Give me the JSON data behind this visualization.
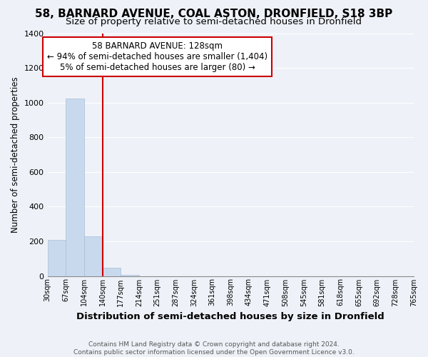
{
  "title": "58, BARNARD AVENUE, COAL ASTON, DRONFIELD, S18 3BP",
  "subtitle": "Size of property relative to semi-detached houses in Dronfield",
  "xlabel": "Distribution of semi-detached houses by size in Dronfield",
  "ylabel": "Number of semi-detached properties",
  "bin_labels": [
    "30sqm",
    "67sqm",
    "104sqm",
    "140sqm",
    "177sqm",
    "214sqm",
    "251sqm",
    "287sqm",
    "324sqm",
    "361sqm",
    "398sqm",
    "434sqm",
    "471sqm",
    "508sqm",
    "545sqm",
    "581sqm",
    "618sqm",
    "655sqm",
    "692sqm",
    "728sqm",
    "765sqm"
  ],
  "bar_values": [
    210,
    1025,
    230,
    47,
    5,
    0,
    0,
    0,
    0,
    0,
    0,
    0,
    0,
    0,
    0,
    0,
    0,
    0,
    0,
    0
  ],
  "bar_color": "#c8d9ee",
  "bar_edge_color": "#aabdd8",
  "property_line_color": "#cc0000",
  "annotation_line1": "58 BARNARD AVENUE: 128sqm",
  "annotation_line2": "← 94% of semi-detached houses are smaller (1,404)",
  "annotation_line3": "5% of semi-detached houses are larger (80) →",
  "annotation_box_color": "#ffffff",
  "annotation_box_edge_color": "#cc0000",
  "ylim": [
    0,
    1400
  ],
  "yticks": [
    0,
    200,
    400,
    600,
    800,
    1000,
    1200,
    1400
  ],
  "footer_text": "Contains HM Land Registry data © Crown copyright and database right 2024.\nContains public sector information licensed under the Open Government Licence v3.0.",
  "background_color": "#eef2f8",
  "grid_color": "#ffffff",
  "title_fontsize": 11,
  "subtitle_fontsize": 9.5
}
